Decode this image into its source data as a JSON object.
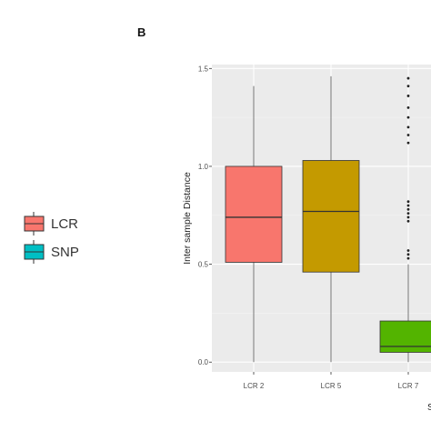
{
  "panel_label": "B",
  "chart_data": {
    "type": "box",
    "ylabel": "Inter sample Distance",
    "xlabel": "S",
    "ylim": [
      -0.05,
      1.52
    ],
    "yticks": [
      0.0,
      0.5,
      1.0,
      1.5
    ],
    "ytick_labels": [
      "0.0",
      "0.5",
      "1.0",
      "1.5"
    ],
    "grid": true,
    "legend": {
      "position": "left",
      "entries": [
        {
          "label": "LCR",
          "color": "#f8766d"
        },
        {
          "label": "SNP",
          "color": "#00bfc4"
        }
      ]
    },
    "categories": [
      "LCR 2",
      "LCR 5",
      "LCR 7"
    ],
    "boxes": [
      {
        "category": "LCR 2",
        "group": "LCR",
        "color": "#f8766d",
        "whisker_low": 0.0,
        "q1": 0.51,
        "median": 0.74,
        "q3": 1.0,
        "whisker_high": 1.41,
        "outliers": []
      },
      {
        "category": "LCR 5",
        "group": "LCR",
        "color": "#c49a00",
        "whisker_low": 0.0,
        "q1": 0.46,
        "median": 0.77,
        "q3": 1.03,
        "whisker_high": 1.46,
        "outliers": []
      },
      {
        "category": "LCR 7",
        "group": "LCR",
        "color": "#53b400",
        "whisker_low": 0.0,
        "q1": 0.05,
        "median": 0.08,
        "q3": 0.21,
        "whisker_high": 0.5,
        "outliers": [
          0.53,
          0.55,
          0.57,
          0.72,
          0.74,
          0.76,
          0.78,
          0.8,
          0.82,
          1.12,
          1.16,
          1.2,
          1.25,
          1.3,
          1.36,
          1.41,
          1.45
        ]
      }
    ]
  }
}
